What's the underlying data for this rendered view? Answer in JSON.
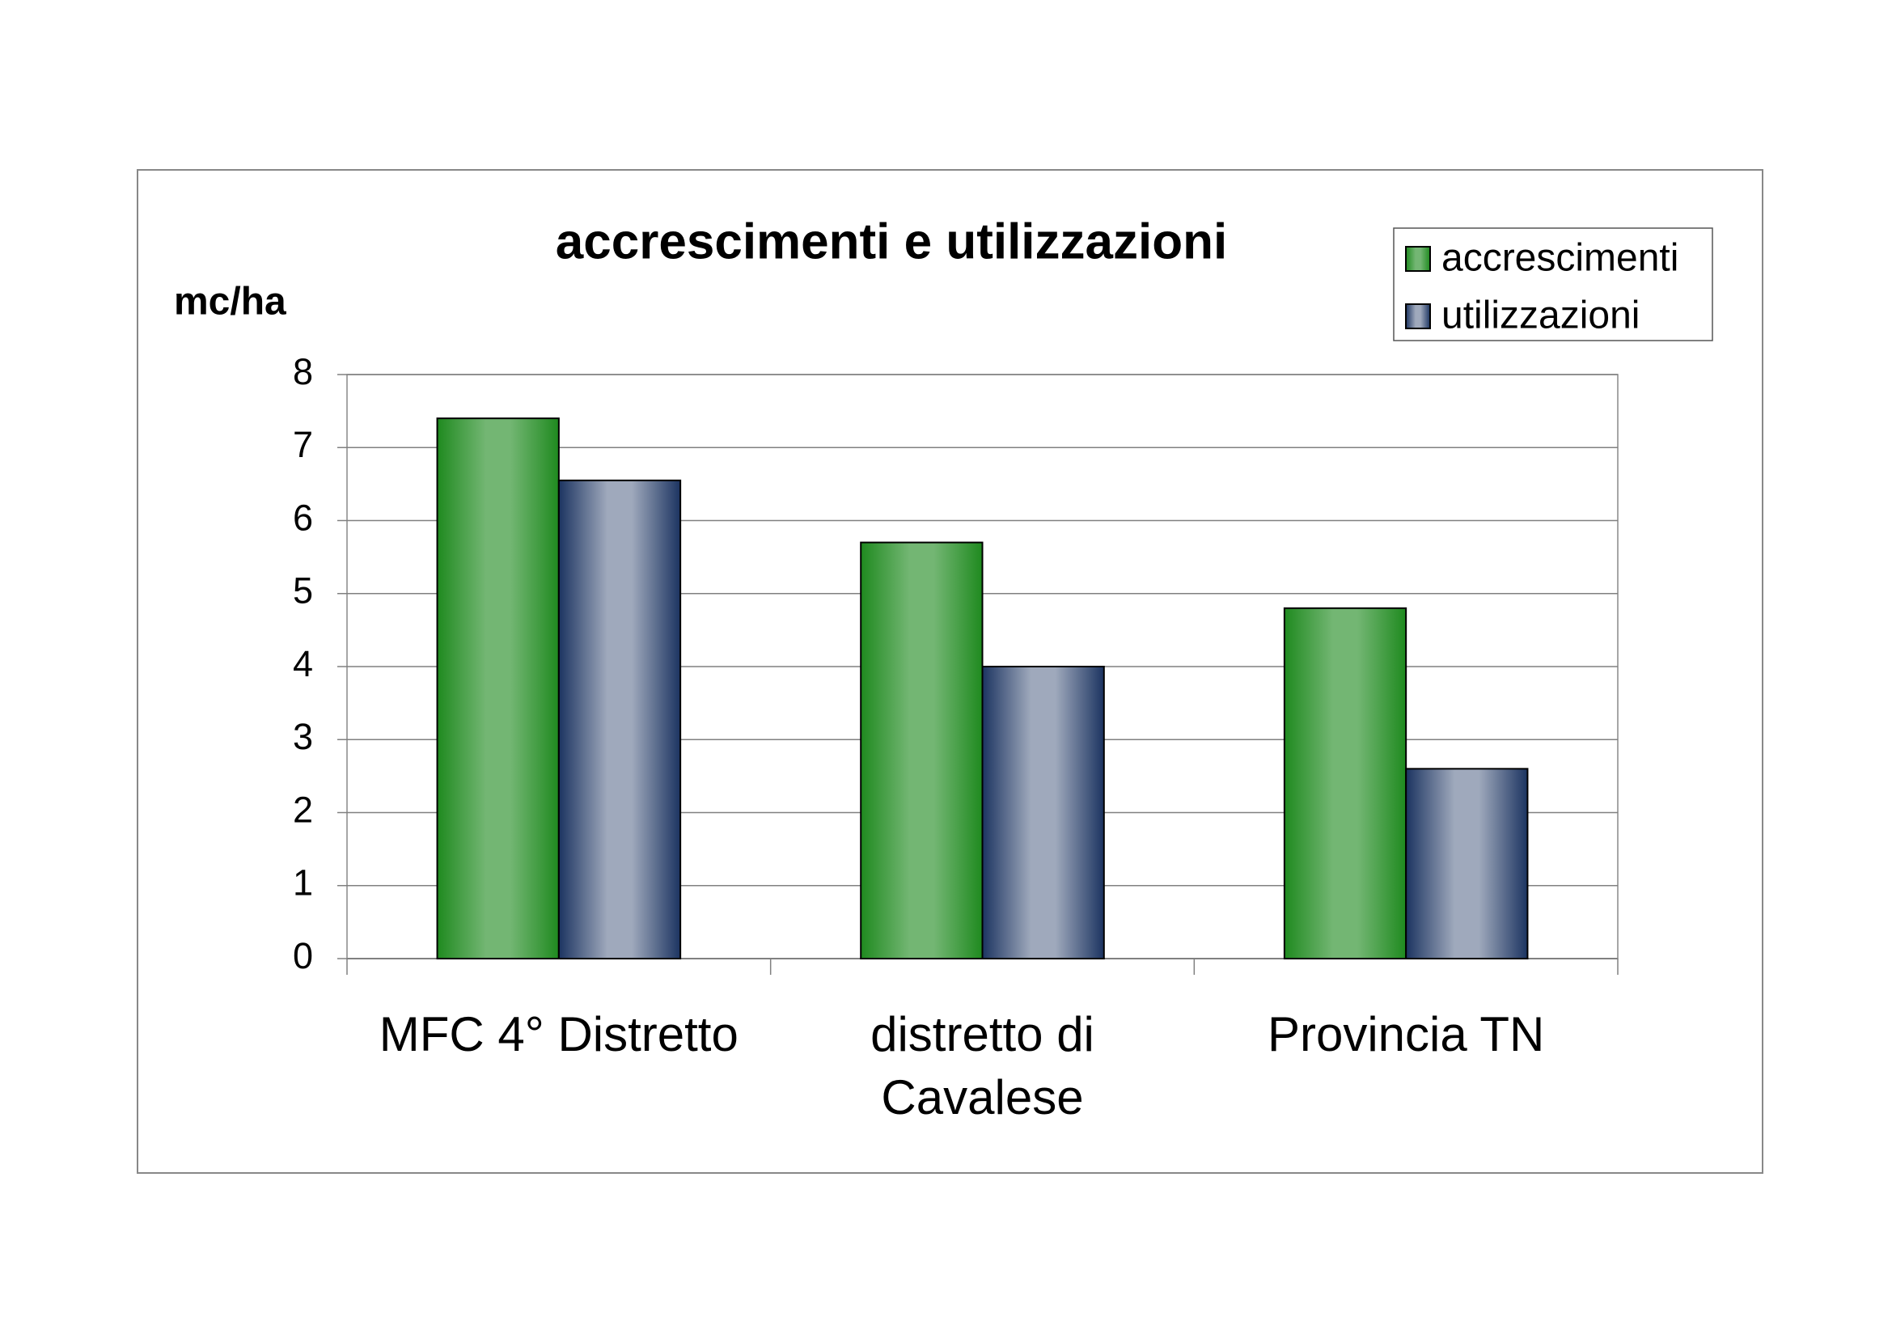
{
  "chart_data": {
    "type": "bar",
    "title": "accrescimenti e utilizzazioni",
    "y_label": "mc/ha",
    "categories": [
      "MFC 4° Distretto",
      "distretto di Cavalese",
      "Provincia TN"
    ],
    "series": [
      {
        "name": "accrescimenti",
        "color": "#1f8a1f",
        "values": [
          7.4,
          5.7,
          4.8
        ]
      },
      {
        "name": "utilizzazioni",
        "color": "#1c3461",
        "values": [
          6.55,
          4.0,
          2.6
        ]
      }
    ],
    "ylim": [
      0,
      8
    ],
    "yticks": [
      0,
      1,
      2,
      3,
      4,
      5,
      6,
      7,
      8
    ],
    "grid": true,
    "legend": "top-right"
  }
}
